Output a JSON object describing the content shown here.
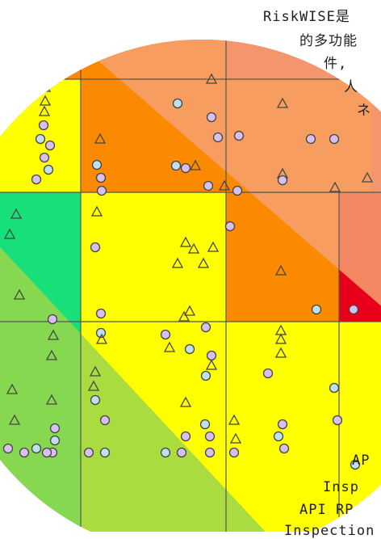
{
  "caption_lines": [
    "RiskWISE是",
    "的多功能",
    "件,",
    "人",
    "ネ",
    "AP",
    "Insp",
    "API RP",
    "Inspection"
  ],
  "colors": {
    "red": "#e85960",
    "orange": "#fb8a00",
    "yellow": "#ffff00",
    "green": "#17e07a",
    "marker_fill": "#d8c0ee",
    "diamond_fill": "#bfe0ef"
  }
}
